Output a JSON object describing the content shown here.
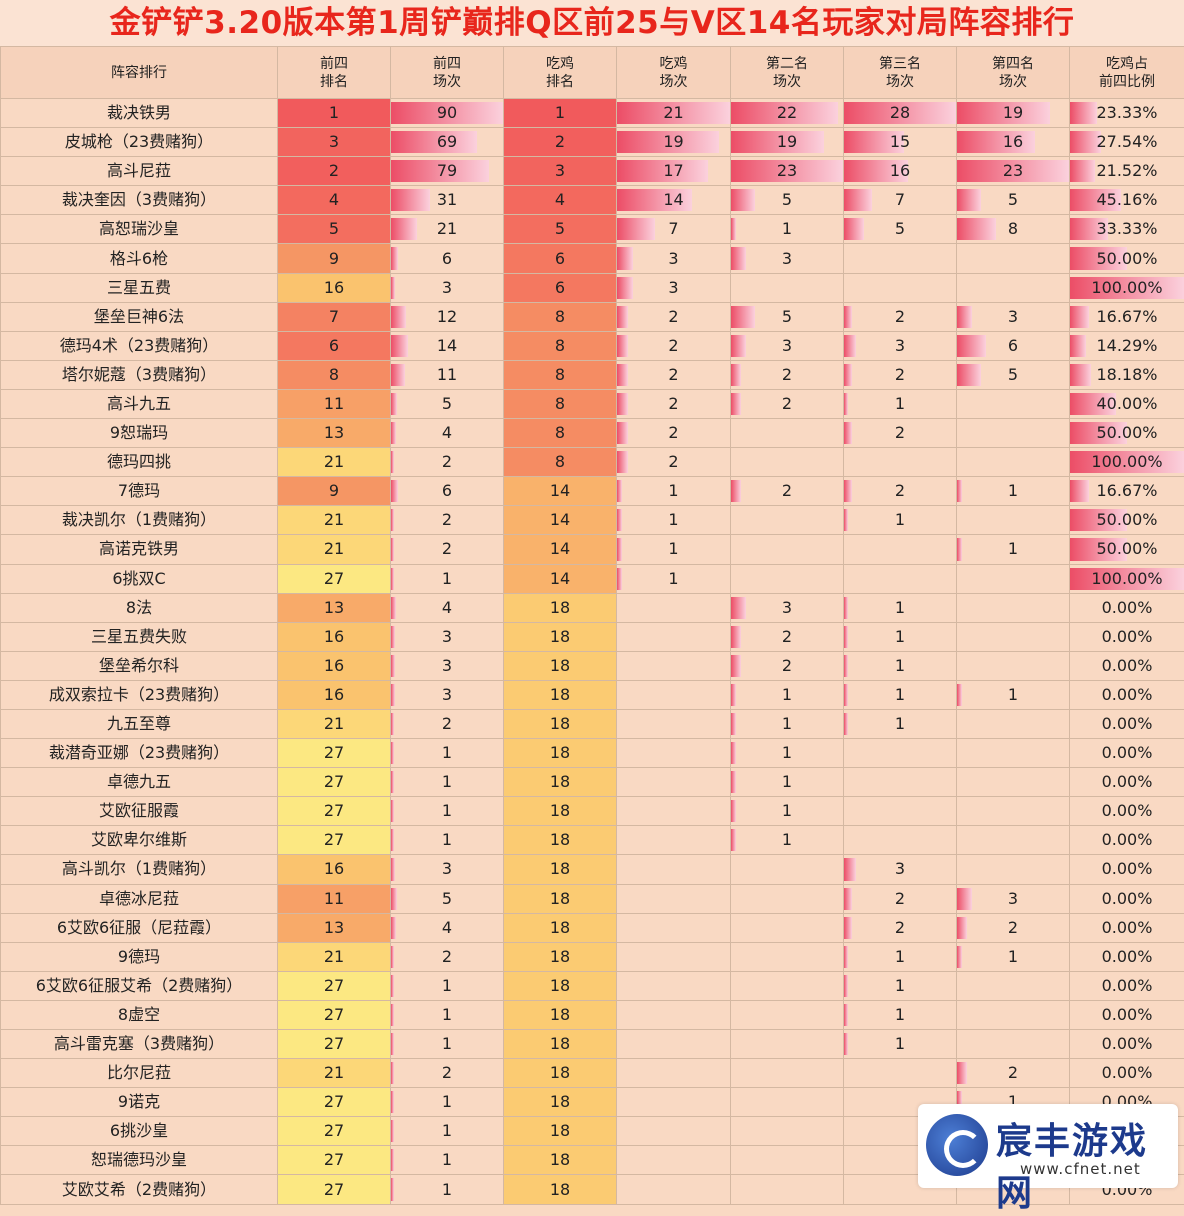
{
  "title": "金铲铲3.20版本第1周铲巅排Q区前25与V区14名玩家对局阵容排行",
  "headers": [
    "阵容排行",
    "前四\n排名",
    "前四\n场次",
    "吃鸡\n排名",
    "吃鸡\n场次",
    "第二名\n场次",
    "第三名\n场次",
    "第四名\n场次",
    "吃鸡占\n前四比例"
  ],
  "rows": [
    {
      "name": "裁决铁男",
      "r4": "1",
      "c4": "90",
      "r1": "1",
      "c1": "21",
      "c2": "22",
      "c3": "28",
      "c4th": "19",
      "pct": "23.33%"
    },
    {
      "name": "皮城枪（23费赌狗）",
      "r4": "3",
      "c4": "69",
      "r1": "2",
      "c1": "19",
      "c2": "19",
      "c3": "15",
      "c4th": "16",
      "pct": "27.54%"
    },
    {
      "name": "高斗尼菈",
      "r4": "2",
      "c4": "79",
      "r1": "3",
      "c1": "17",
      "c2": "23",
      "c3": "16",
      "c4th": "23",
      "pct": "21.52%"
    },
    {
      "name": "裁决奎因（3费赌狗）",
      "r4": "4",
      "c4": "31",
      "r1": "4",
      "c1": "14",
      "c2": "5",
      "c3": "7",
      "c4th": "5",
      "pct": "45.16%"
    },
    {
      "name": "高恕瑞沙皇",
      "r4": "5",
      "c4": "21",
      "r1": "5",
      "c1": "7",
      "c2": "1",
      "c3": "5",
      "c4th": "8",
      "pct": "33.33%"
    },
    {
      "name": "格斗6枪",
      "r4": "9",
      "c4": "6",
      "r1": "6",
      "c1": "3",
      "c2": "3",
      "c3": "",
      "c4th": "",
      "pct": "50.00%"
    },
    {
      "name": "三星五费",
      "r4": "16",
      "c4": "3",
      "r1": "6",
      "c1": "3",
      "c2": "",
      "c3": "",
      "c4th": "",
      "pct": "100.00%"
    },
    {
      "name": "堡垒巨神6法",
      "r4": "7",
      "c4": "12",
      "r1": "8",
      "c1": "2",
      "c2": "5",
      "c3": "2",
      "c4th": "3",
      "pct": "16.67%"
    },
    {
      "name": "德玛4术（23费赌狗）",
      "r4": "6",
      "c4": "14",
      "r1": "8",
      "c1": "2",
      "c2": "3",
      "c3": "3",
      "c4th": "6",
      "pct": "14.29%"
    },
    {
      "name": "塔尔妮蔻（3费赌狗）",
      "r4": "8",
      "c4": "11",
      "r1": "8",
      "c1": "2",
      "c2": "2",
      "c3": "2",
      "c4th": "5",
      "pct": "18.18%"
    },
    {
      "name": "高斗九五",
      "r4": "11",
      "c4": "5",
      "r1": "8",
      "c1": "2",
      "c2": "2",
      "c3": "1",
      "c4th": "",
      "pct": "40.00%"
    },
    {
      "name": "9恕瑞玛",
      "r4": "13",
      "c4": "4",
      "r1": "8",
      "c1": "2",
      "c2": "",
      "c3": "2",
      "c4th": "",
      "pct": "50.00%"
    },
    {
      "name": "德玛四挑",
      "r4": "21",
      "c4": "2",
      "r1": "8",
      "c1": "2",
      "c2": "",
      "c3": "",
      "c4th": "",
      "pct": "100.00%"
    },
    {
      "name": "7德玛",
      "r4": "9",
      "c4": "6",
      "r1": "14",
      "c1": "1",
      "c2": "2",
      "c3": "2",
      "c4th": "1",
      "pct": "16.67%"
    },
    {
      "name": "裁决凯尔（1费赌狗）",
      "r4": "21",
      "c4": "2",
      "r1": "14",
      "c1": "1",
      "c2": "",
      "c3": "1",
      "c4th": "",
      "pct": "50.00%"
    },
    {
      "name": "高诺克铁男",
      "r4": "21",
      "c4": "2",
      "r1": "14",
      "c1": "1",
      "c2": "",
      "c3": "",
      "c4th": "1",
      "pct": "50.00%"
    },
    {
      "name": "6挑双C",
      "r4": "27",
      "c4": "1",
      "r1": "14",
      "c1": "1",
      "c2": "",
      "c3": "",
      "c4th": "",
      "pct": "100.00%"
    },
    {
      "name": "8法",
      "r4": "13",
      "c4": "4",
      "r1": "18",
      "c1": "",
      "c2": "3",
      "c3": "1",
      "c4th": "",
      "pct": "0.00%"
    },
    {
      "name": "三星五费失败",
      "r4": "16",
      "c4": "3",
      "r1": "18",
      "c1": "",
      "c2": "2",
      "c3": "1",
      "c4th": "",
      "pct": "0.00%"
    },
    {
      "name": "堡垒希尔科",
      "r4": "16",
      "c4": "3",
      "r1": "18",
      "c1": "",
      "c2": "2",
      "c3": "1",
      "c4th": "",
      "pct": "0.00%"
    },
    {
      "name": "成双索拉卡（23费赌狗）",
      "r4": "16",
      "c4": "3",
      "r1": "18",
      "c1": "",
      "c2": "1",
      "c3": "1",
      "c4th": "1",
      "pct": "0.00%"
    },
    {
      "name": "九五至尊",
      "r4": "21",
      "c4": "2",
      "r1": "18",
      "c1": "",
      "c2": "1",
      "c3": "1",
      "c4th": "",
      "pct": "0.00%"
    },
    {
      "name": "裁潜奇亚娜（23费赌狗）",
      "r4": "27",
      "c4": "1",
      "r1": "18",
      "c1": "",
      "c2": "1",
      "c3": "",
      "c4th": "",
      "pct": "0.00%"
    },
    {
      "name": "卓德九五",
      "r4": "27",
      "c4": "1",
      "r1": "18",
      "c1": "",
      "c2": "1",
      "c3": "",
      "c4th": "",
      "pct": "0.00%"
    },
    {
      "name": "艾欧征服霞",
      "r4": "27",
      "c4": "1",
      "r1": "18",
      "c1": "",
      "c2": "1",
      "c3": "",
      "c4th": "",
      "pct": "0.00%"
    },
    {
      "name": "艾欧卑尔维斯",
      "r4": "27",
      "c4": "1",
      "r1": "18",
      "c1": "",
      "c2": "1",
      "c3": "",
      "c4th": "",
      "pct": "0.00%"
    },
    {
      "name": "高斗凯尔（1费赌狗）",
      "r4": "16",
      "c4": "3",
      "r1": "18",
      "c1": "",
      "c2": "",
      "c3": "3",
      "c4th": "",
      "pct": "0.00%"
    },
    {
      "name": "卓德冰尼菈",
      "r4": "11",
      "c4": "5",
      "r1": "18",
      "c1": "",
      "c2": "",
      "c3": "2",
      "c4th": "3",
      "pct": "0.00%"
    },
    {
      "name": "6艾欧6征服（尼菈霞）",
      "r4": "13",
      "c4": "4",
      "r1": "18",
      "c1": "",
      "c2": "",
      "c3": "2",
      "c4th": "2",
      "pct": "0.00%"
    },
    {
      "name": "9德玛",
      "r4": "21",
      "c4": "2",
      "r1": "18",
      "c1": "",
      "c2": "",
      "c3": "1",
      "c4th": "1",
      "pct": "0.00%"
    },
    {
      "name": "6艾欧6征服艾希（2费赌狗）",
      "r4": "27",
      "c4": "1",
      "r1": "18",
      "c1": "",
      "c2": "",
      "c3": "1",
      "c4th": "",
      "pct": "0.00%"
    },
    {
      "name": "8虚空",
      "r4": "27",
      "c4": "1",
      "r1": "18",
      "c1": "",
      "c2": "",
      "c3": "1",
      "c4th": "",
      "pct": "0.00%"
    },
    {
      "name": "高斗雷克塞（3费赌狗）",
      "r4": "27",
      "c4": "1",
      "r1": "18",
      "c1": "",
      "c2": "",
      "c3": "1",
      "c4th": "",
      "pct": "0.00%"
    },
    {
      "name": "比尔尼菈",
      "r4": "21",
      "c4": "2",
      "r1": "18",
      "c1": "",
      "c2": "",
      "c3": "",
      "c4th": "2",
      "pct": "0.00%"
    },
    {
      "name": "9诺克",
      "r4": "27",
      "c4": "1",
      "r1": "18",
      "c1": "",
      "c2": "",
      "c3": "",
      "c4th": "1",
      "pct": "0.00%"
    },
    {
      "name": "6挑沙皇",
      "r4": "27",
      "c4": "1",
      "r1": "18",
      "c1": "",
      "c2": "",
      "c3": "",
      "c4th": "1",
      "pct": "0.00%"
    },
    {
      "name": "恕瑞德玛沙皇",
      "r4": "27",
      "c4": "1",
      "r1": "18",
      "c1": "",
      "c2": "",
      "c3": "",
      "c4th": "",
      "pct": "0.00%"
    },
    {
      "name": "艾欧艾希（2费赌狗）",
      "r4": "27",
      "c4": "1",
      "r1": "18",
      "c1": "",
      "c2": "",
      "c3": "",
      "c4th": "",
      "pct": "0.00%"
    }
  ],
  "logo": {
    "text": "宸丰游戏网",
    "url": "www.cfnet.net"
  },
  "colors": {
    "title": "#e8261c",
    "background": "#f9d9c3",
    "rank_high": "#f25a5c",
    "rank_low": "#fbe786",
    "bar": "#ec4d66"
  }
}
